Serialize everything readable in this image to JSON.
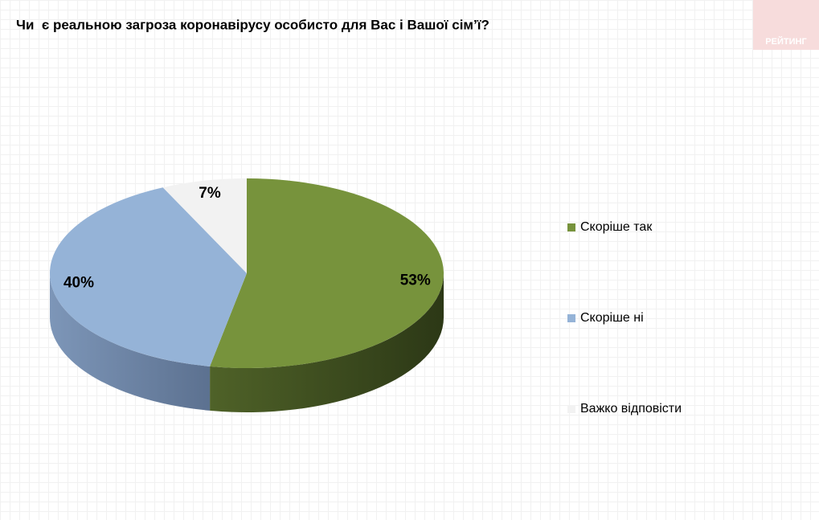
{
  "brand": "РЕЙТИНГ",
  "chart_data": {
    "type": "pie3d",
    "title": "Чи  є реальною загроза коронавірусу особисто для Вас і Вашої сім’ї?",
    "categories": [
      "Скоріше так",
      "Скоріше ні",
      "Важко відповісти"
    ],
    "values": [
      53,
      40,
      7
    ],
    "value_labels": [
      "53%",
      "40%",
      "7%"
    ],
    "colors": [
      "#77933c",
      "#95b3d7",
      "#f2f2f2"
    ]
  }
}
